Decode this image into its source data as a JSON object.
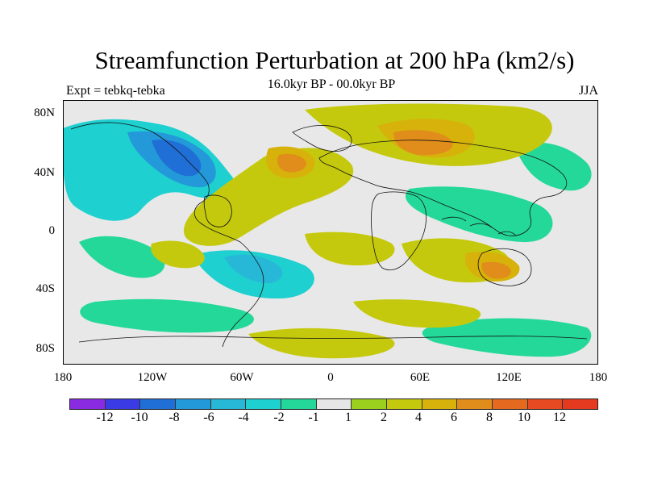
{
  "title": "Streamfunction Perturbation at 200 hPa (km2/s)",
  "subtitle": "16.0kyr BP - 00.0kyr BP",
  "left_label": "Expt = tebkq-tebka",
  "right_label": "JJA",
  "lat_labels": [
    "80N",
    "40N",
    "0",
    "40S",
    "80S"
  ],
  "lon_labels": [
    "180",
    "120W",
    "60W",
    "0",
    "60E",
    "120E",
    "180"
  ],
  "colorbar": {
    "colors": [
      "#8a2be2",
      "#3b3be6",
      "#1f6fd6",
      "#2399d9",
      "#27b8d7",
      "#1ed0d0",
      "#24d89a",
      "#e6e6e6",
      "#9bd11e",
      "#c5c90d",
      "#d7b20b",
      "#e08d1b",
      "#e56a1f",
      "#e64a22",
      "#e53a1f"
    ],
    "labels": [
      "-12",
      "-10",
      "-8",
      "-6",
      "-4",
      "-2",
      "-1",
      "1",
      "2",
      "4",
      "6",
      "8",
      "10",
      "12"
    ]
  },
  "map_image": {
    "alt": "Global map of streamfunction perturbation at 200 hPa with filled contours and coastlines"
  }
}
